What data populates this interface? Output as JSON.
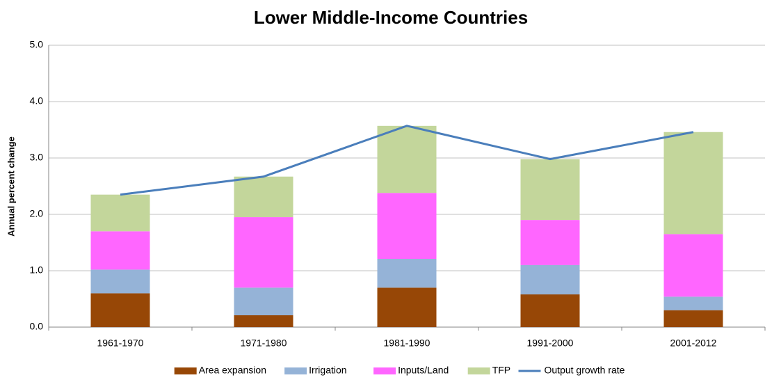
{
  "chart_data": {
    "type": "bar",
    "stacked": true,
    "title": "Lower Middle-Income Countries",
    "ylabel": "Annual percent change",
    "categories": [
      "1961-1970",
      "1971-1980",
      "1981-1990",
      "1991-2000",
      "2001-2012"
    ],
    "series": [
      {
        "name": "Area expansion",
        "color": "#974706",
        "values": [
          0.6,
          0.21,
          0.7,
          0.58,
          0.3
        ]
      },
      {
        "name": "Irrigation",
        "color": "#95b3d7",
        "values": [
          0.42,
          0.49,
          0.51,
          0.52,
          0.24
        ]
      },
      {
        "name": "Inputs/Land",
        "color": "#ff66ff",
        "values": [
          0.68,
          1.25,
          1.17,
          0.8,
          1.11
        ]
      },
      {
        "name": "TFP",
        "color": "#c3d69b",
        "values": [
          0.65,
          0.72,
          1.19,
          1.08,
          1.81
        ]
      },
      {
        "name": "Output growth rate",
        "color": "#4a7ebb",
        "type": "line",
        "values": [
          2.35,
          2.67,
          3.57,
          2.98,
          3.46
        ]
      }
    ],
    "ylim": [
      0,
      5
    ],
    "yticks": [
      {
        "value": 0,
        "label": "0.0"
      },
      {
        "value": 1,
        "label": "1.0"
      },
      {
        "value": 2,
        "label": "2.0"
      },
      {
        "value": 3,
        "label": "3.0"
      },
      {
        "value": 4,
        "label": "4.0"
      },
      {
        "value": 5,
        "label": "5.0"
      }
    ],
    "grid": true,
    "legend": "bottom"
  }
}
